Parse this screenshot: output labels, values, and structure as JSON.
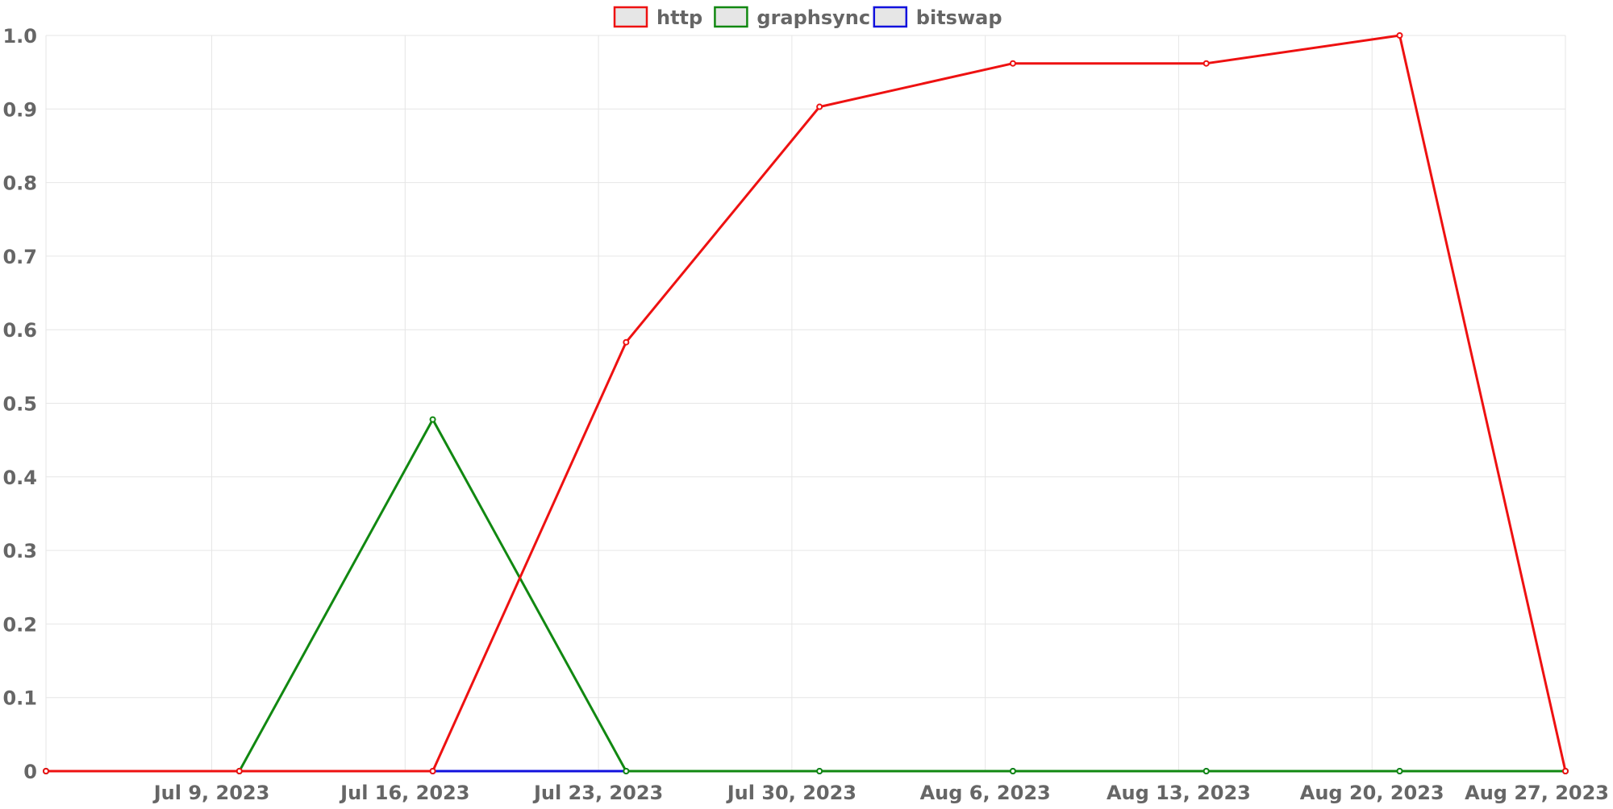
{
  "chart_data": {
    "type": "line",
    "title": "",
    "xlabel": "",
    "ylabel": "",
    "x_tick_labels": [
      "Jul 9, 2023",
      "Jul 16, 2023",
      "Jul 23, 2023",
      "Jul 30, 2023",
      "Aug 6, 2023",
      "Aug 13, 2023",
      "Aug 20, 2023",
      "Aug 27, 2023"
    ],
    "y_tick_labels": [
      "0",
      "0.1",
      "0.2",
      "0.3",
      "0.4",
      "0.5",
      "0.6",
      "0.7",
      "0.8",
      "0.9",
      "1.0"
    ],
    "ylim": [
      0,
      1.0
    ],
    "xlim": [
      "2023-07-03",
      "2023-08-27"
    ],
    "x": [
      "2023-07-03",
      "2023-07-10",
      "2023-07-17",
      "2023-07-24",
      "2023-07-31",
      "2023-08-07",
      "2023-08-14",
      "2023-08-21",
      "2023-08-27"
    ],
    "grid": true,
    "legend_position": "top-center",
    "series": [
      {
        "name": "http",
        "color": "#ee1111",
        "values": [
          0,
          0,
          0,
          0.583,
          0.903,
          0.962,
          0.962,
          1.0,
          0
        ]
      },
      {
        "name": "graphsync",
        "color": "#118811",
        "values": [
          0,
          0,
          0.478,
          0,
          0,
          0,
          0,
          0,
          0
        ]
      },
      {
        "name": "bitswap",
        "color": "#1111dd",
        "values": [
          0,
          0,
          0,
          0,
          0,
          0,
          0,
          0,
          0
        ]
      }
    ]
  }
}
